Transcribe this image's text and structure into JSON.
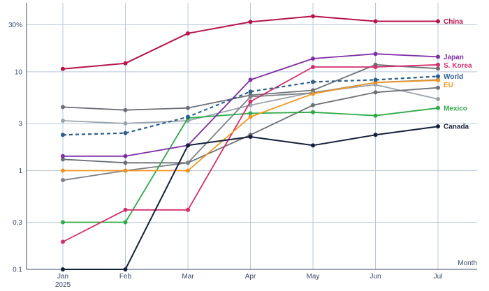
{
  "chart_data": {
    "type": "line",
    "title": "",
    "xlabel": "Month",
    "ylabel": "",
    "y_scale": "log",
    "ylim": [
      0.1,
      50
    ],
    "grid": true,
    "categories": [
      "Jan",
      "Feb",
      "Mar",
      "Apr",
      "May",
      "Jun",
      "Jul"
    ],
    "x_tick_labels": [
      "Jan\n2025",
      "Feb",
      "Mar",
      "Apr",
      "May",
      "Jun",
      "Jul"
    ],
    "y_ticks": [
      0.1,
      0.3,
      1,
      3,
      10,
      30
    ],
    "y_tick_labels": [
      "0.1",
      "0.3",
      "1",
      "3",
      "10",
      "30%"
    ],
    "series": [
      {
        "id": "gray-a",
        "name": "",
        "color": "#9aa3ad",
        "dashed": false,
        "values": [
          3.2,
          3.0,
          3.2,
          4.6,
          6.2,
          7.4,
          5.3
        ]
      },
      {
        "id": "gray-b",
        "name": "",
        "color": "#6b6f76",
        "dashed": false,
        "values": [
          4.4,
          4.1,
          4.3,
          5.8,
          6.5,
          11.8,
          10.8
        ]
      },
      {
        "id": "gray-c",
        "name": "",
        "color": "#6b6f76",
        "dashed": false,
        "values": [
          1.3,
          1.2,
          1.2,
          2.3,
          4.6,
          6.2,
          6.9
        ]
      },
      {
        "id": "gray-d",
        "name": "",
        "color": "#7d8187",
        "dashed": false,
        "values": [
          0.8,
          1.0,
          1.2,
          5.6,
          6.1,
          7.8,
          8.3
        ]
      },
      {
        "id": "mexico",
        "name": "Mexico",
        "color": "#2eaa4a",
        "dashed": false,
        "values": [
          0.3,
          0.3,
          3.4,
          3.8,
          3.9,
          3.6,
          4.3
        ]
      },
      {
        "id": "s-korea",
        "name": "S. Korea",
        "color": "#d42e6c",
        "dashed": false,
        "values": [
          0.19,
          0.4,
          0.4,
          5.0,
          11.2,
          11.2,
          11.8
        ]
      },
      {
        "id": "eu",
        "name": "EU",
        "color": "#f0951f",
        "dashed": false,
        "values": [
          1.0,
          1.0,
          1.0,
          3.5,
          6.0,
          7.8,
          8.2
        ]
      },
      {
        "id": "japan",
        "name": "Japan",
        "color": "#7f2ea8",
        "dashed": false,
        "values": [
          1.4,
          1.4,
          1.8,
          8.3,
          13.6,
          15.2,
          14.2
        ]
      },
      {
        "id": "world",
        "name": "World",
        "color": "#2a5f8f",
        "dashed": true,
        "values": [
          2.3,
          2.4,
          3.5,
          6.3,
          7.9,
          8.3,
          9.0
        ]
      },
      {
        "id": "canada",
        "name": "Canada",
        "color": "#14203a",
        "dashed": false,
        "values": [
          0.1,
          0.1,
          1.8,
          2.2,
          1.8,
          2.3,
          2.8
        ]
      },
      {
        "id": "china",
        "name": "China",
        "color": "#b8134a",
        "dashed": false,
        "values": [
          10.7,
          12.2,
          24.5,
          32.0,
          36.5,
          32.5,
          32.5
        ]
      }
    ],
    "end_labels": [
      {
        "series": "china",
        "text": "China"
      },
      {
        "series": "japan",
        "text": "Japan"
      },
      {
        "series": "s-korea",
        "text": "S. Korea"
      },
      {
        "series": "world",
        "text": "World"
      },
      {
        "series": "eu",
        "text": "EU"
      },
      {
        "series": "mexico",
        "text": "Mexico"
      },
      {
        "series": "canada",
        "text": "Canada"
      }
    ]
  }
}
